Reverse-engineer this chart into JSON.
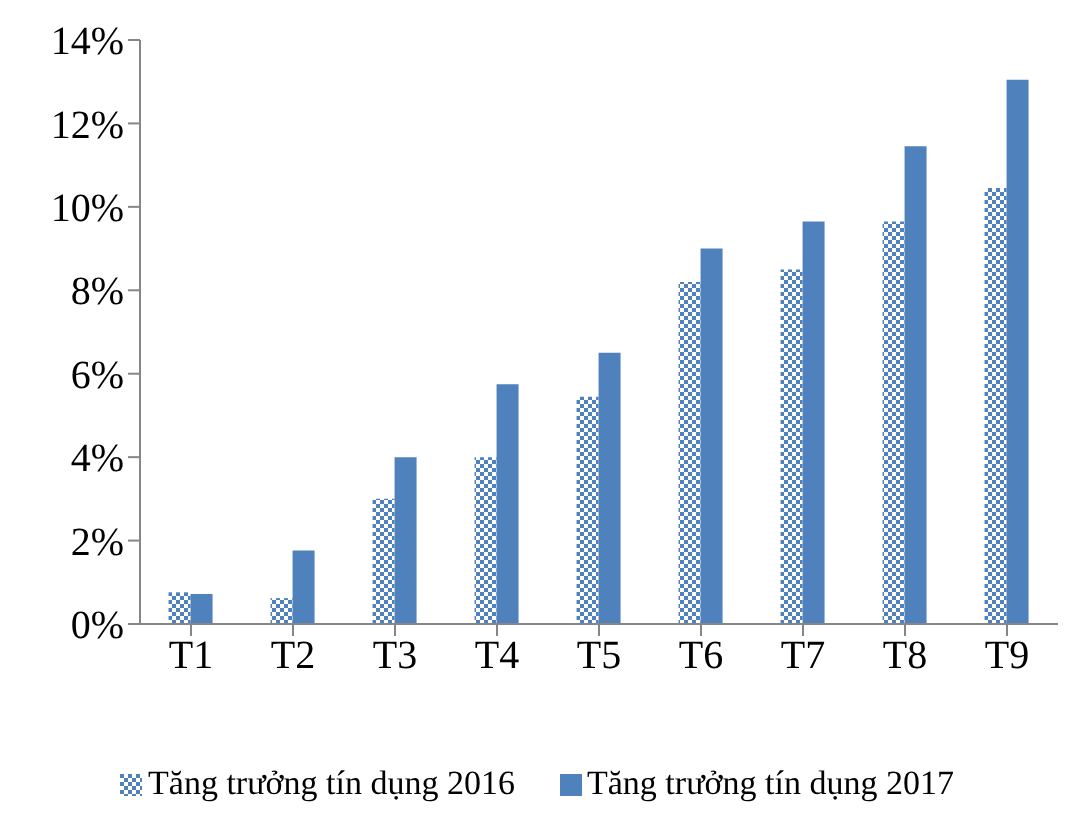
{
  "chart_data": {
    "type": "bar",
    "categories": [
      "T1",
      "T2",
      "T3",
      "T4",
      "T5",
      "T6",
      "T7",
      "T8",
      "T9"
    ],
    "series": [
      {
        "name": "Tăng trưởng tín dụng 2016",
        "color": "#4f81bd",
        "values": [
          0.76,
          0.62,
          3.0,
          4.0,
          5.45,
          8.2,
          8.5,
          9.65,
          10.45
        ]
      },
      {
        "name": "Tăng trưởng tín dụng 2017",
        "color": "#4f81bd",
        "values": [
          0.72,
          1.76,
          4.0,
          5.75,
          6.5,
          9.0,
          9.65,
          11.45,
          13.05
        ]
      }
    ],
    "ylim": [
      0,
      14
    ],
    "yticks": [
      {
        "value": 0,
        "label": "0%"
      },
      {
        "value": 2,
        "label": "2%"
      },
      {
        "value": 4,
        "label": "4%"
      },
      {
        "value": 6,
        "label": "6%"
      },
      {
        "value": 8,
        "label": "8%"
      },
      {
        "value": 10,
        "label": "10%"
      },
      {
        "value": 12,
        "label": "12%"
      },
      {
        "value": 14,
        "label": "14%"
      }
    ],
    "grid": false,
    "legend": "bottom"
  }
}
